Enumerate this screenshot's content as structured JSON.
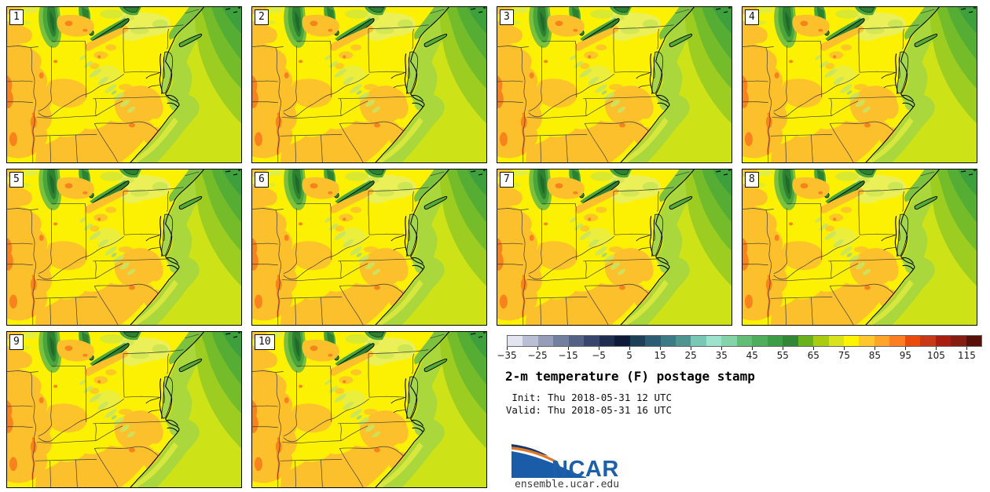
{
  "panels": [
    {
      "member": "1"
    },
    {
      "member": "2"
    },
    {
      "member": "3"
    },
    {
      "member": "4"
    },
    {
      "member": "5"
    },
    {
      "member": "6"
    },
    {
      "member": "7"
    },
    {
      "member": "8"
    },
    {
      "member": "9"
    },
    {
      "member": "10"
    }
  ],
  "colorbar": {
    "unit": "F",
    "range_min": -35,
    "range_max": 120,
    "segment_step": 5,
    "tick_values": [
      -35,
      -25,
      -15,
      -5,
      5,
      15,
      25,
      35,
      45,
      55,
      65,
      75,
      85,
      95,
      105,
      115
    ],
    "tick_labels": [
      "−35",
      "−25",
      "−15",
      "−5",
      "5",
      "15",
      "25",
      "35",
      "45",
      "55",
      "65",
      "75",
      "85",
      "95",
      "105",
      "115"
    ],
    "segment_colors": [
      "#e2e5ef",
      "#babfd6",
      "#959db9",
      "#727f9f",
      "#536285",
      "#36466c",
      "#1f2d50",
      "#0e1b38",
      "#1e3f58",
      "#2d5d75",
      "#3c7a86",
      "#4e9591",
      "#79c8b6",
      "#9ce2cd",
      "#83d4a9",
      "#62bd77",
      "#4fae5e",
      "#3d9c46",
      "#318736",
      "#69b21d",
      "#a9cc11",
      "#d9e31b",
      "#fdf303",
      "#fdc72d",
      "#fda429",
      "#fd7e22",
      "#e84b0c",
      "#c63817",
      "#a81e10",
      "#851d12",
      "#541208"
    ]
  },
  "info": {
    "title": "2-m temperature (F) postage stamp",
    "init_label": "Init:",
    "init_value": "Thu 2018-05-31 12 UTC",
    "valid_label": "Valid:",
    "valid_value": "Thu 2018-05-31 16 UTC",
    "logo_text": "NCAR",
    "site": "ensemble.ucar.edu"
  },
  "map_colors": {
    "land_warm_yellow": "#fcf103",
    "land_orange": "#fdc02d",
    "land_hot_orange": "#f8831d",
    "ocean_chartreuse": "#cde318",
    "ocean_cool_green": "#3da03c",
    "lake_green": "#2f8132"
  }
}
